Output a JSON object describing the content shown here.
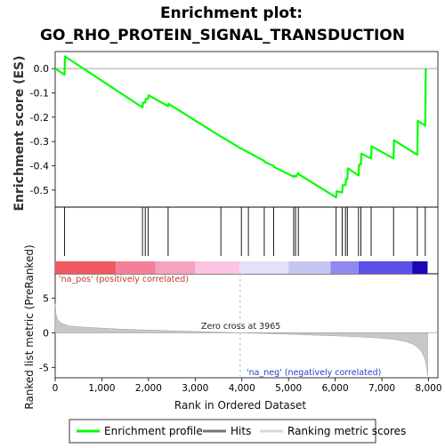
{
  "chart_data": {
    "type": "line",
    "title_line1": "Enrichment plot:",
    "title_line2": "GO_RHO_PROTEIN_SIGNAL_TRANSDUCTION",
    "es_panel": {
      "ylabel": "Enrichment score (ES)",
      "ylim": [
        -0.57,
        0.07
      ],
      "yticks": [
        0.0,
        -0.1,
        -0.2,
        -0.3,
        -0.4,
        -0.5
      ],
      "ytick_labels": [
        "0.0",
        "-0.1",
        "-0.2",
        "-0.3",
        "-0.4",
        "-0.5"
      ],
      "series_name": "Enrichment profile",
      "color": "#00ff00",
      "points": [
        [
          0,
          0.0
        ],
        [
          200,
          -0.025
        ],
        [
          210,
          0.05
        ],
        [
          1870,
          -0.16
        ],
        [
          1880,
          -0.14
        ],
        [
          1930,
          -0.14
        ],
        [
          1940,
          -0.125
        ],
        [
          1990,
          -0.125
        ],
        [
          2000,
          -0.11
        ],
        [
          2420,
          -0.155
        ],
        [
          2430,
          -0.145
        ],
        [
          3550,
          -0.28
        ],
        [
          3560,
          -0.28
        ],
        [
          3990,
          -0.33
        ],
        [
          4000,
          -0.33
        ],
        [
          4140,
          -0.345
        ],
        [
          4480,
          -0.38
        ],
        [
          4490,
          -0.385
        ],
        [
          4680,
          -0.4
        ],
        [
          4690,
          -0.405
        ],
        [
          5110,
          -0.445
        ],
        [
          5120,
          -0.44
        ],
        [
          5150,
          -0.445
        ],
        [
          5160,
          -0.445
        ],
        [
          5210,
          -0.43
        ],
        [
          5220,
          -0.435
        ],
        [
          6020,
          -0.53
        ],
        [
          6030,
          -0.505
        ],
        [
          6150,
          -0.51
        ],
        [
          6160,
          -0.48
        ],
        [
          6220,
          -0.48
        ],
        [
          6230,
          -0.455
        ],
        [
          6260,
          -0.455
        ],
        [
          6270,
          -0.41
        ],
        [
          6500,
          -0.44
        ],
        [
          6510,
          -0.395
        ],
        [
          6550,
          -0.395
        ],
        [
          6560,
          -0.35
        ],
        [
          6770,
          -0.37
        ],
        [
          6780,
          -0.32
        ],
        [
          7250,
          -0.37
        ],
        [
          7260,
          -0.295
        ],
        [
          7760,
          -0.355
        ],
        [
          7770,
          -0.215
        ],
        [
          7930,
          -0.235
        ],
        [
          7940,
          0.0
        ]
      ]
    },
    "hits": {
      "series_name": "Hits",
      "positions": [
        200,
        1870,
        1930,
        1990,
        2420,
        3550,
        3990,
        4140,
        4480,
        4680,
        5110,
        5150,
        5210,
        6020,
        6150,
        6220,
        6260,
        6500,
        6550,
        6770,
        7250,
        7760,
        7930
      ]
    },
    "heatmap": {
      "label_pos": "'na_pos' (positively correlated)",
      "label_neg": "'na_neg' (negatively correlated)",
      "segments": [
        {
          "x0": 0,
          "x1": 1300,
          "color": "#f0595f"
        },
        {
          "x0": 1300,
          "x1": 2150,
          "color": "#f47f9a"
        },
        {
          "x0": 2150,
          "x1": 3000,
          "color": "#f7a2bf"
        },
        {
          "x0": 3000,
          "x1": 3950,
          "color": "#fac4e2"
        },
        {
          "x0": 3950,
          "x1": 5000,
          "color": "#e3e0fa"
        },
        {
          "x0": 5000,
          "x1": 5900,
          "color": "#c6c6f4"
        },
        {
          "x0": 5900,
          "x1": 6500,
          "color": "#8f89ee"
        },
        {
          "x0": 6500,
          "x1": 7650,
          "color": "#5b50e6"
        },
        {
          "x0": 7650,
          "x1": 7980,
          "color": "#1b08b4"
        }
      ]
    },
    "metric_panel": {
      "ylabel": "Ranked list metric (PreRanked)",
      "ylim": [
        -6.5,
        8.5
      ],
      "yticks": [
        5,
        0,
        -5
      ],
      "ytick_labels": [
        "5",
        "0",
        "-5"
      ],
      "series_name": "Ranking metric scores",
      "zero_cross_label": "Zero cross at 3965",
      "zero_cross": 3965,
      "curve": [
        [
          0,
          4.2
        ],
        [
          20,
          2.6
        ],
        [
          60,
          1.8
        ],
        [
          150,
          1.3
        ],
        [
          300,
          1.0
        ],
        [
          600,
          0.8
        ],
        [
          1000,
          0.65
        ],
        [
          1500,
          0.5
        ],
        [
          2000,
          0.38
        ],
        [
          2500,
          0.27
        ],
        [
          3000,
          0.18
        ],
        [
          3500,
          0.08
        ],
        [
          3965,
          0.0
        ],
        [
          4500,
          -0.12
        ],
        [
          5000,
          -0.22
        ],
        [
          5500,
          -0.33
        ],
        [
          6000,
          -0.45
        ],
        [
          6500,
          -0.6
        ],
        [
          7000,
          -0.8
        ],
        [
          7300,
          -1.0
        ],
        [
          7500,
          -1.25
        ],
        [
          7650,
          -1.6
        ],
        [
          7750,
          -2.0
        ],
        [
          7850,
          -2.7
        ],
        [
          7920,
          -3.7
        ],
        [
          7960,
          -5.0
        ],
        [
          7980,
          -6.2
        ]
      ]
    },
    "xaxis": {
      "label": "Rank in Ordered Dataset",
      "xlim": [
        0,
        8200
      ],
      "ticks": [
        0,
        1000,
        2000,
        3000,
        4000,
        5000,
        6000,
        7000,
        8000
      ],
      "tick_labels": [
        "0",
        "1,000",
        "2,000",
        "3,000",
        "4,000",
        "5,000",
        "6,000",
        "7,000",
        "8,000"
      ]
    },
    "legend": {
      "placement": "bottom",
      "items": [
        "Enrichment profile",
        "Hits",
        "Ranking metric scores"
      ]
    }
  }
}
